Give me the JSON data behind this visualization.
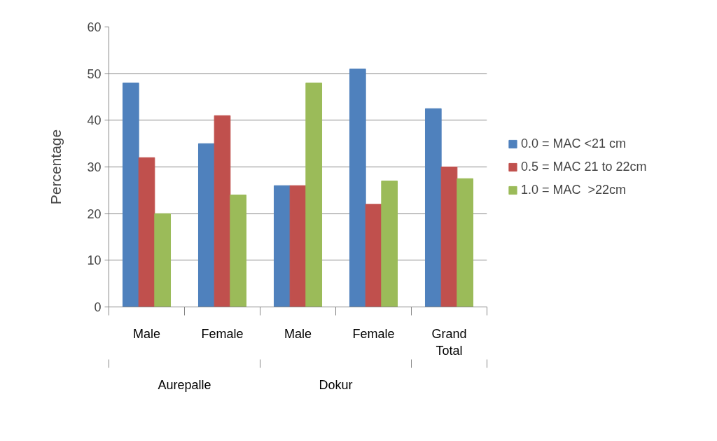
{
  "chart_data": {
    "type": "bar",
    "ylabel": "Percentage",
    "categories": [
      "Male",
      "Female",
      "Male",
      "Female",
      "Grand Total"
    ],
    "annotations": [
      "Aurepalle",
      "Dokur"
    ],
    "series": [
      {
        "name": "0.0 = MAC <21 cm",
        "color": "#4f81bd",
        "values": [
          48,
          35,
          26,
          51,
          42.5
        ]
      },
      {
        "name": "0.5 = MAC 21 to 22cm",
        "color": "#c0504d",
        "values": [
          32,
          41,
          26,
          22,
          30
        ]
      },
      {
        "name": "1.0 = MAC  >22cm",
        "color": "#9bbb59",
        "values": [
          20,
          24,
          48,
          27,
          27.5
        ]
      }
    ],
    "ylim": [
      0,
      60
    ],
    "yticks": [
      0,
      10,
      20,
      30,
      40,
      50,
      60
    ],
    "grid": "y",
    "legend": "right"
  }
}
